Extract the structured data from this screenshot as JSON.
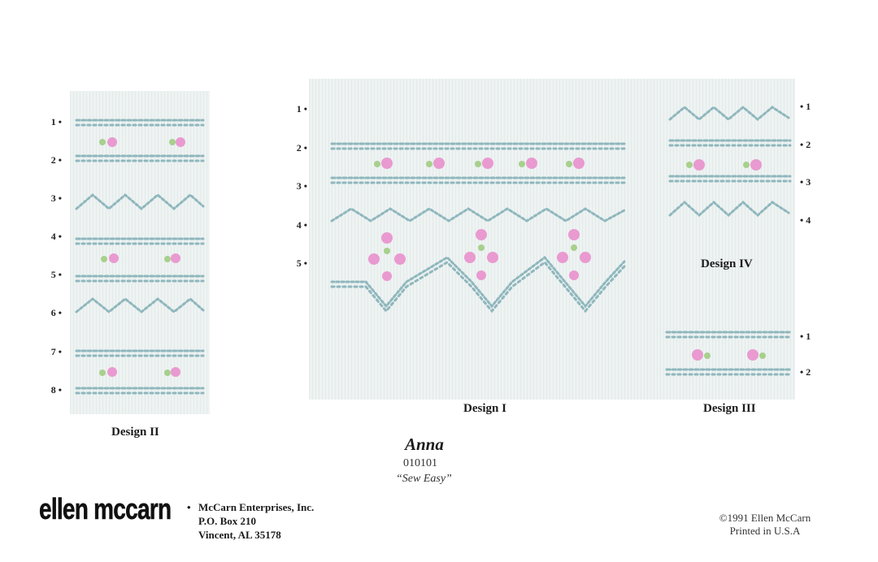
{
  "design2": {
    "caption": "Design II",
    "rows": [
      "1 •",
      "2 •",
      "3 •",
      "4 •",
      "5 •",
      "6 •",
      "7 •",
      "8 •"
    ]
  },
  "design1": {
    "caption": "Design I",
    "rows": [
      "1 •",
      "2 •",
      "3 •",
      "4 •",
      "5 •"
    ]
  },
  "design4": {
    "caption": "Design IV",
    "rows": [
      "• 1",
      "• 2",
      "• 3",
      "• 4"
    ]
  },
  "design3": {
    "caption": "Design III",
    "rows": [
      "• 1",
      "• 2"
    ]
  },
  "title": {
    "name": "Anna",
    "code": "010101",
    "subtitle": "“Sew Easy”"
  },
  "publisher": {
    "logo": "ellen mccarn",
    "address_lines": [
      "McCarn Enterprises, Inc.",
      "P.O. Box 210",
      "Vincent, AL 35178"
    ]
  },
  "copyright": {
    "lines": [
      "©1991 Ellen McCarn",
      "Printed in U.S.A"
    ]
  },
  "colors": {
    "fabric": "#eef3f2",
    "stitch": "#8fb7bd",
    "flower": "#e99ad0",
    "leaf": "#a8d08d"
  }
}
